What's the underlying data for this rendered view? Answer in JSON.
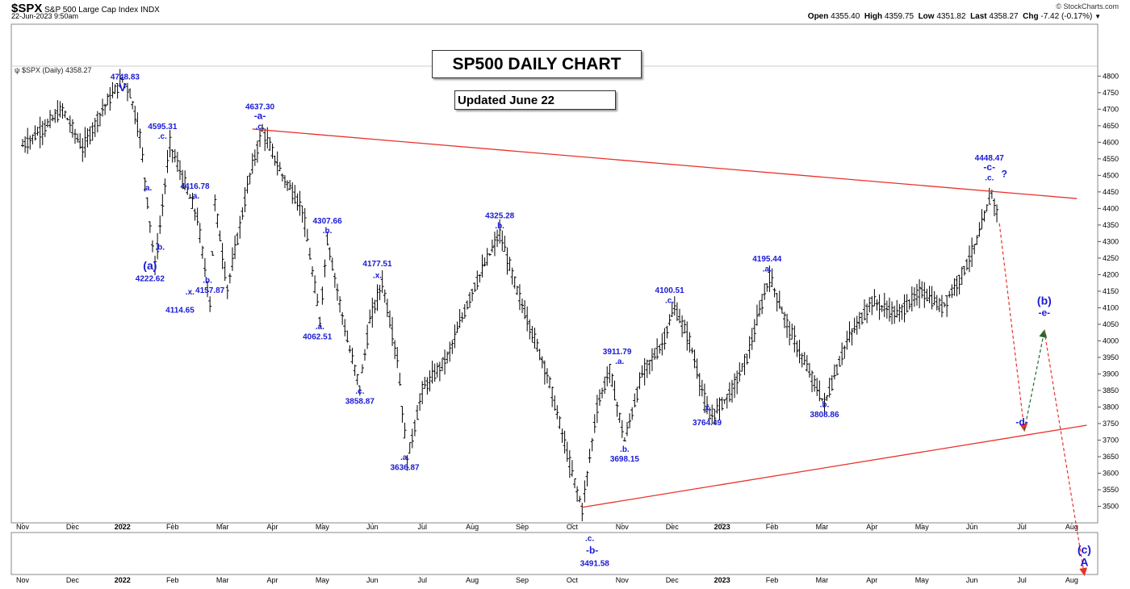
{
  "header": {
    "symbol": "$SPX",
    "name": "S&P 500 Large Cap Index",
    "exchange": "INDX",
    "datetime": "22-Jun-2023 9:50am",
    "brand": "© StockCharts.com",
    "open_label": "Open",
    "open": "4355.40",
    "high_label": "High",
    "high": "4359.75",
    "low_label": "Low",
    "low": "4351.82",
    "last_label": "Last",
    "last": "4358.27",
    "chg_label": "Chg",
    "chg": "-7.42 (-0.17%)",
    "chg_icon": "triangle-down-icon"
  },
  "legend": {
    "text": "$SPX (Daily) 4358.27"
  },
  "title_box": "SP500 DAILY CHART",
  "update_box": "Updated June 22",
  "chart_data": {
    "type": "candlestick",
    "ylim": [
      3450,
      4830
    ],
    "y_ticks": [
      3500,
      3550,
      3600,
      3650,
      3700,
      3750,
      3800,
      3850,
      3900,
      3950,
      4000,
      4050,
      4100,
      4150,
      4200,
      4250,
      4300,
      4350,
      4400,
      4450,
      4500,
      4550,
      4600,
      4650,
      4700,
      4750,
      4800
    ],
    "x_labels": [
      {
        "label": "Nov",
        "bold": false,
        "pos": 0
      },
      {
        "label": "Dec",
        "bold": false,
        "pos": 1
      },
      {
        "label": "2022",
        "bold": true,
        "pos": 2
      },
      {
        "label": "Feb",
        "bold": false,
        "pos": 3
      },
      {
        "label": "Mar",
        "bold": false,
        "pos": 4
      },
      {
        "label": "Apr",
        "bold": false,
        "pos": 5
      },
      {
        "label": "May",
        "bold": false,
        "pos": 6
      },
      {
        "label": "Jun",
        "bold": false,
        "pos": 7
      },
      {
        "label": "Jul",
        "bold": false,
        "pos": 8
      },
      {
        "label": "Aug",
        "bold": false,
        "pos": 9
      },
      {
        "label": "Sep",
        "bold": false,
        "pos": 10
      },
      {
        "label": "Oct",
        "bold": false,
        "pos": 11
      },
      {
        "label": "Nov",
        "bold": false,
        "pos": 12
      },
      {
        "label": "Dec",
        "bold": false,
        "pos": 13
      },
      {
        "label": "2023",
        "bold": true,
        "pos": 14
      },
      {
        "label": "Feb",
        "bold": false,
        "pos": 15
      },
      {
        "label": "Mar",
        "bold": false,
        "pos": 16
      },
      {
        "label": "Apr",
        "bold": false,
        "pos": 17
      },
      {
        "label": "May",
        "bold": false,
        "pos": 18
      },
      {
        "label": "Jun",
        "bold": false,
        "pos": 19
      },
      {
        "label": "Jul",
        "bold": false,
        "pos": 20
      },
      {
        "label": "Aug",
        "bold": false,
        "pos": 21
      }
    ],
    "price_path": [
      [
        0,
        4590
      ],
      [
        0.4,
        4640
      ],
      [
        0.8,
        4700
      ],
      [
        1.2,
        4580
      ],
      [
        1.6,
        4700
      ],
      [
        2.0,
        4790
      ],
      [
        2.15,
        4748.83
      ],
      [
        2.35,
        4620
      ],
      [
        2.65,
        4222.62
      ],
      [
        2.95,
        4595.31
      ],
      [
        3.5,
        4370
      ],
      [
        3.75,
        4114.65
      ],
      [
        3.85,
        4416.78
      ],
      [
        4.1,
        4157.87
      ],
      [
        4.55,
        4500
      ],
      [
        4.8,
        4637.3
      ],
      [
        5.2,
        4500
      ],
      [
        5.6,
        4400
      ],
      [
        5.95,
        4062.51
      ],
      [
        6.1,
        4307.66
      ],
      [
        6.5,
        4000
      ],
      [
        6.75,
        3858.87
      ],
      [
        6.95,
        4060
      ],
      [
        7.2,
        4177.51
      ],
      [
        7.5,
        3950
      ],
      [
        7.7,
        3636.87
      ],
      [
        8.0,
        3850
      ],
      [
        8.5,
        3950
      ],
      [
        9.0,
        4150
      ],
      [
        9.55,
        4325.28
      ],
      [
        9.9,
        4150
      ],
      [
        10.5,
        3900
      ],
      [
        11.0,
        3600
      ],
      [
        11.2,
        3491.58
      ],
      [
        11.5,
        3800
      ],
      [
        11.75,
        3911.79
      ],
      [
        12.05,
        3698.15
      ],
      [
        12.4,
        3900
      ],
      [
        12.8,
        3990
      ],
      [
        13.05,
        4100.51
      ],
      [
        13.35,
        4000
      ],
      [
        13.75,
        3764.49
      ],
      [
        14.2,
        3850
      ],
      [
        14.5,
        3950
      ],
      [
        14.95,
        4195.44
      ],
      [
        15.3,
        4050
      ],
      [
        15.6,
        3950
      ],
      [
        16.05,
        3808.86
      ],
      [
        16.5,
        4000
      ],
      [
        17.0,
        4120
      ],
      [
        17.5,
        4080
      ],
      [
        18.0,
        4150
      ],
      [
        18.4,
        4100
      ],
      [
        18.8,
        4200
      ],
      [
        19.1,
        4300
      ],
      [
        19.4,
        4448.47
      ],
      [
        19.55,
        4358.27
      ]
    ],
    "trendlines": [
      {
        "name": "upper-trendline",
        "color": "#e8322a",
        "from": [
          4.6,
          4640
        ],
        "to": [
          21.1,
          4430
        ]
      },
      {
        "name": "lower-trendline",
        "color": "#e8322a",
        "from": [
          11.2,
          3497
        ],
        "to": [
          21.3,
          3745
        ]
      }
    ],
    "projections": [
      {
        "name": "projection-down-to-d",
        "color": "#e8322a",
        "from": [
          19.55,
          4355
        ],
        "to": [
          20.05,
          3730
        ]
      },
      {
        "name": "projection-up-to-e",
        "color": "#1d6b2f",
        "from": [
          20.05,
          3730
        ],
        "to": [
          20.45,
          4030
        ]
      },
      {
        "name": "projection-down-to-c",
        "color": "#e8322a",
        "from": [
          20.45,
          4030
        ],
        "to": [
          21.25,
          3390
        ]
      }
    ],
    "wave_labels": [
      {
        "text": "4748.83",
        "x": 2.05,
        "y": 4790
      },
      {
        "text": "V",
        "x": 2.0,
        "y": 4755,
        "size": "big"
      },
      {
        "text": "4595.31",
        "x": 2.8,
        "y": 4640
      },
      {
        "text": ".c.",
        "x": 2.8,
        "y": 4610
      },
      {
        "text": ".a.",
        "x": 2.5,
        "y": 4455
      },
      {
        "text": ".b.",
        "x": 2.75,
        "y": 4275
      },
      {
        "text": "(a)",
        "x": 2.55,
        "y": 4215,
        "size": "big"
      },
      {
        "text": "4222.62",
        "x": 2.55,
        "y": 4180
      },
      {
        "text": "4416.78",
        "x": 3.45,
        "y": 4460
      },
      {
        "text": ".a.",
        "x": 3.45,
        "y": 4430
      },
      {
        "text": ".b.",
        "x": 3.7,
        "y": 4175
      },
      {
        "text": ".x.",
        "x": 3.35,
        "y": 4140
      },
      {
        "text": "4157.87",
        "x": 3.75,
        "y": 4145
      },
      {
        "text": "4114.65",
        "x": 3.15,
        "y": 4085
      },
      {
        "text": "4637.30",
        "x": 4.75,
        "y": 4700
      },
      {
        "text": "-a-",
        "x": 4.75,
        "y": 4670,
        "size": "mid"
      },
      {
        "text": ".c.",
        "x": 4.75,
        "y": 4640
      },
      {
        "text": "4307.66",
        "x": 6.1,
        "y": 4355
      },
      {
        "text": ".b.",
        "x": 6.1,
        "y": 4325
      },
      {
        "text": ".a.",
        "x": 5.95,
        "y": 4035
      },
      {
        "text": "4062.51",
        "x": 5.9,
        "y": 4005
      },
      {
        "text": "4177.51",
        "x": 7.1,
        "y": 4225
      },
      {
        "text": ".x.",
        "x": 7.1,
        "y": 4190
      },
      {
        "text": ".c.",
        "x": 6.75,
        "y": 3840
      },
      {
        "text": "3858.87",
        "x": 6.75,
        "y": 3810
      },
      {
        "text": ".a.",
        "x": 7.65,
        "y": 3640
      },
      {
        "text": "3636.87",
        "x": 7.65,
        "y": 3610
      },
      {
        "text": "4325.28",
        "x": 9.55,
        "y": 4370
      },
      {
        "text": ".b.",
        "x": 9.55,
        "y": 4340
      },
      {
        "text": "3911.79",
        "x": 11.9,
        "y": 3960
      },
      {
        "text": ".a.",
        "x": 11.95,
        "y": 3930
      },
      {
        "text": ".b.",
        "x": 12.05,
        "y": 3665
      },
      {
        "text": "3698.15",
        "x": 12.05,
        "y": 3635
      },
      {
        "text": "4100.51",
        "x": 12.95,
        "y": 4145
      },
      {
        "text": ".c.",
        "x": 12.95,
        "y": 4115
      },
      {
        "text": ".x.",
        "x": 13.7,
        "y": 3790
      },
      {
        "text": "3764.49",
        "x": 13.7,
        "y": 3745
      },
      {
        "text": "4195.44",
        "x": 14.9,
        "y": 4240
      },
      {
        "text": ".a.",
        "x": 14.9,
        "y": 4210
      },
      {
        "text": ".b.",
        "x": 16.05,
        "y": 3800
      },
      {
        "text": "3808.86",
        "x": 16.05,
        "y": 3770
      },
      {
        "text": "4448.47",
        "x": 19.35,
        "y": 4545
      },
      {
        "text": "-c-",
        "x": 19.35,
        "y": 4515,
        "size": "mid"
      },
      {
        "text": ".c.",
        "x": 19.35,
        "y": 4485
      },
      {
        "text": "?",
        "x": 19.65,
        "y": 4495,
        "size": "mid"
      },
      {
        "text": "-d-",
        "x": 20.0,
        "y": 3745,
        "size": "mid"
      },
      {
        "text": "(b)",
        "x": 20.45,
        "y": 4110,
        "size": "big"
      },
      {
        "text": "-e-",
        "x": 20.45,
        "y": 4075,
        "size": "mid"
      },
      {
        "text": "(c)",
        "x": 21.25,
        "y": 3440,
        "size": "big",
        "zone": "lower"
      },
      {
        "text": "A",
        "x": 21.25,
        "y": 3410,
        "size": "big",
        "zone": "lower"
      },
      {
        "text": ".c.",
        "x": 11.35,
        "y": 3470,
        "zone": "lower"
      },
      {
        "text": "-b-",
        "x": 11.4,
        "y": 3440,
        "size": "mid",
        "zone": "lower"
      },
      {
        "text": "3491.58",
        "x": 11.45,
        "y": 3410,
        "zone": "lower"
      }
    ]
  }
}
